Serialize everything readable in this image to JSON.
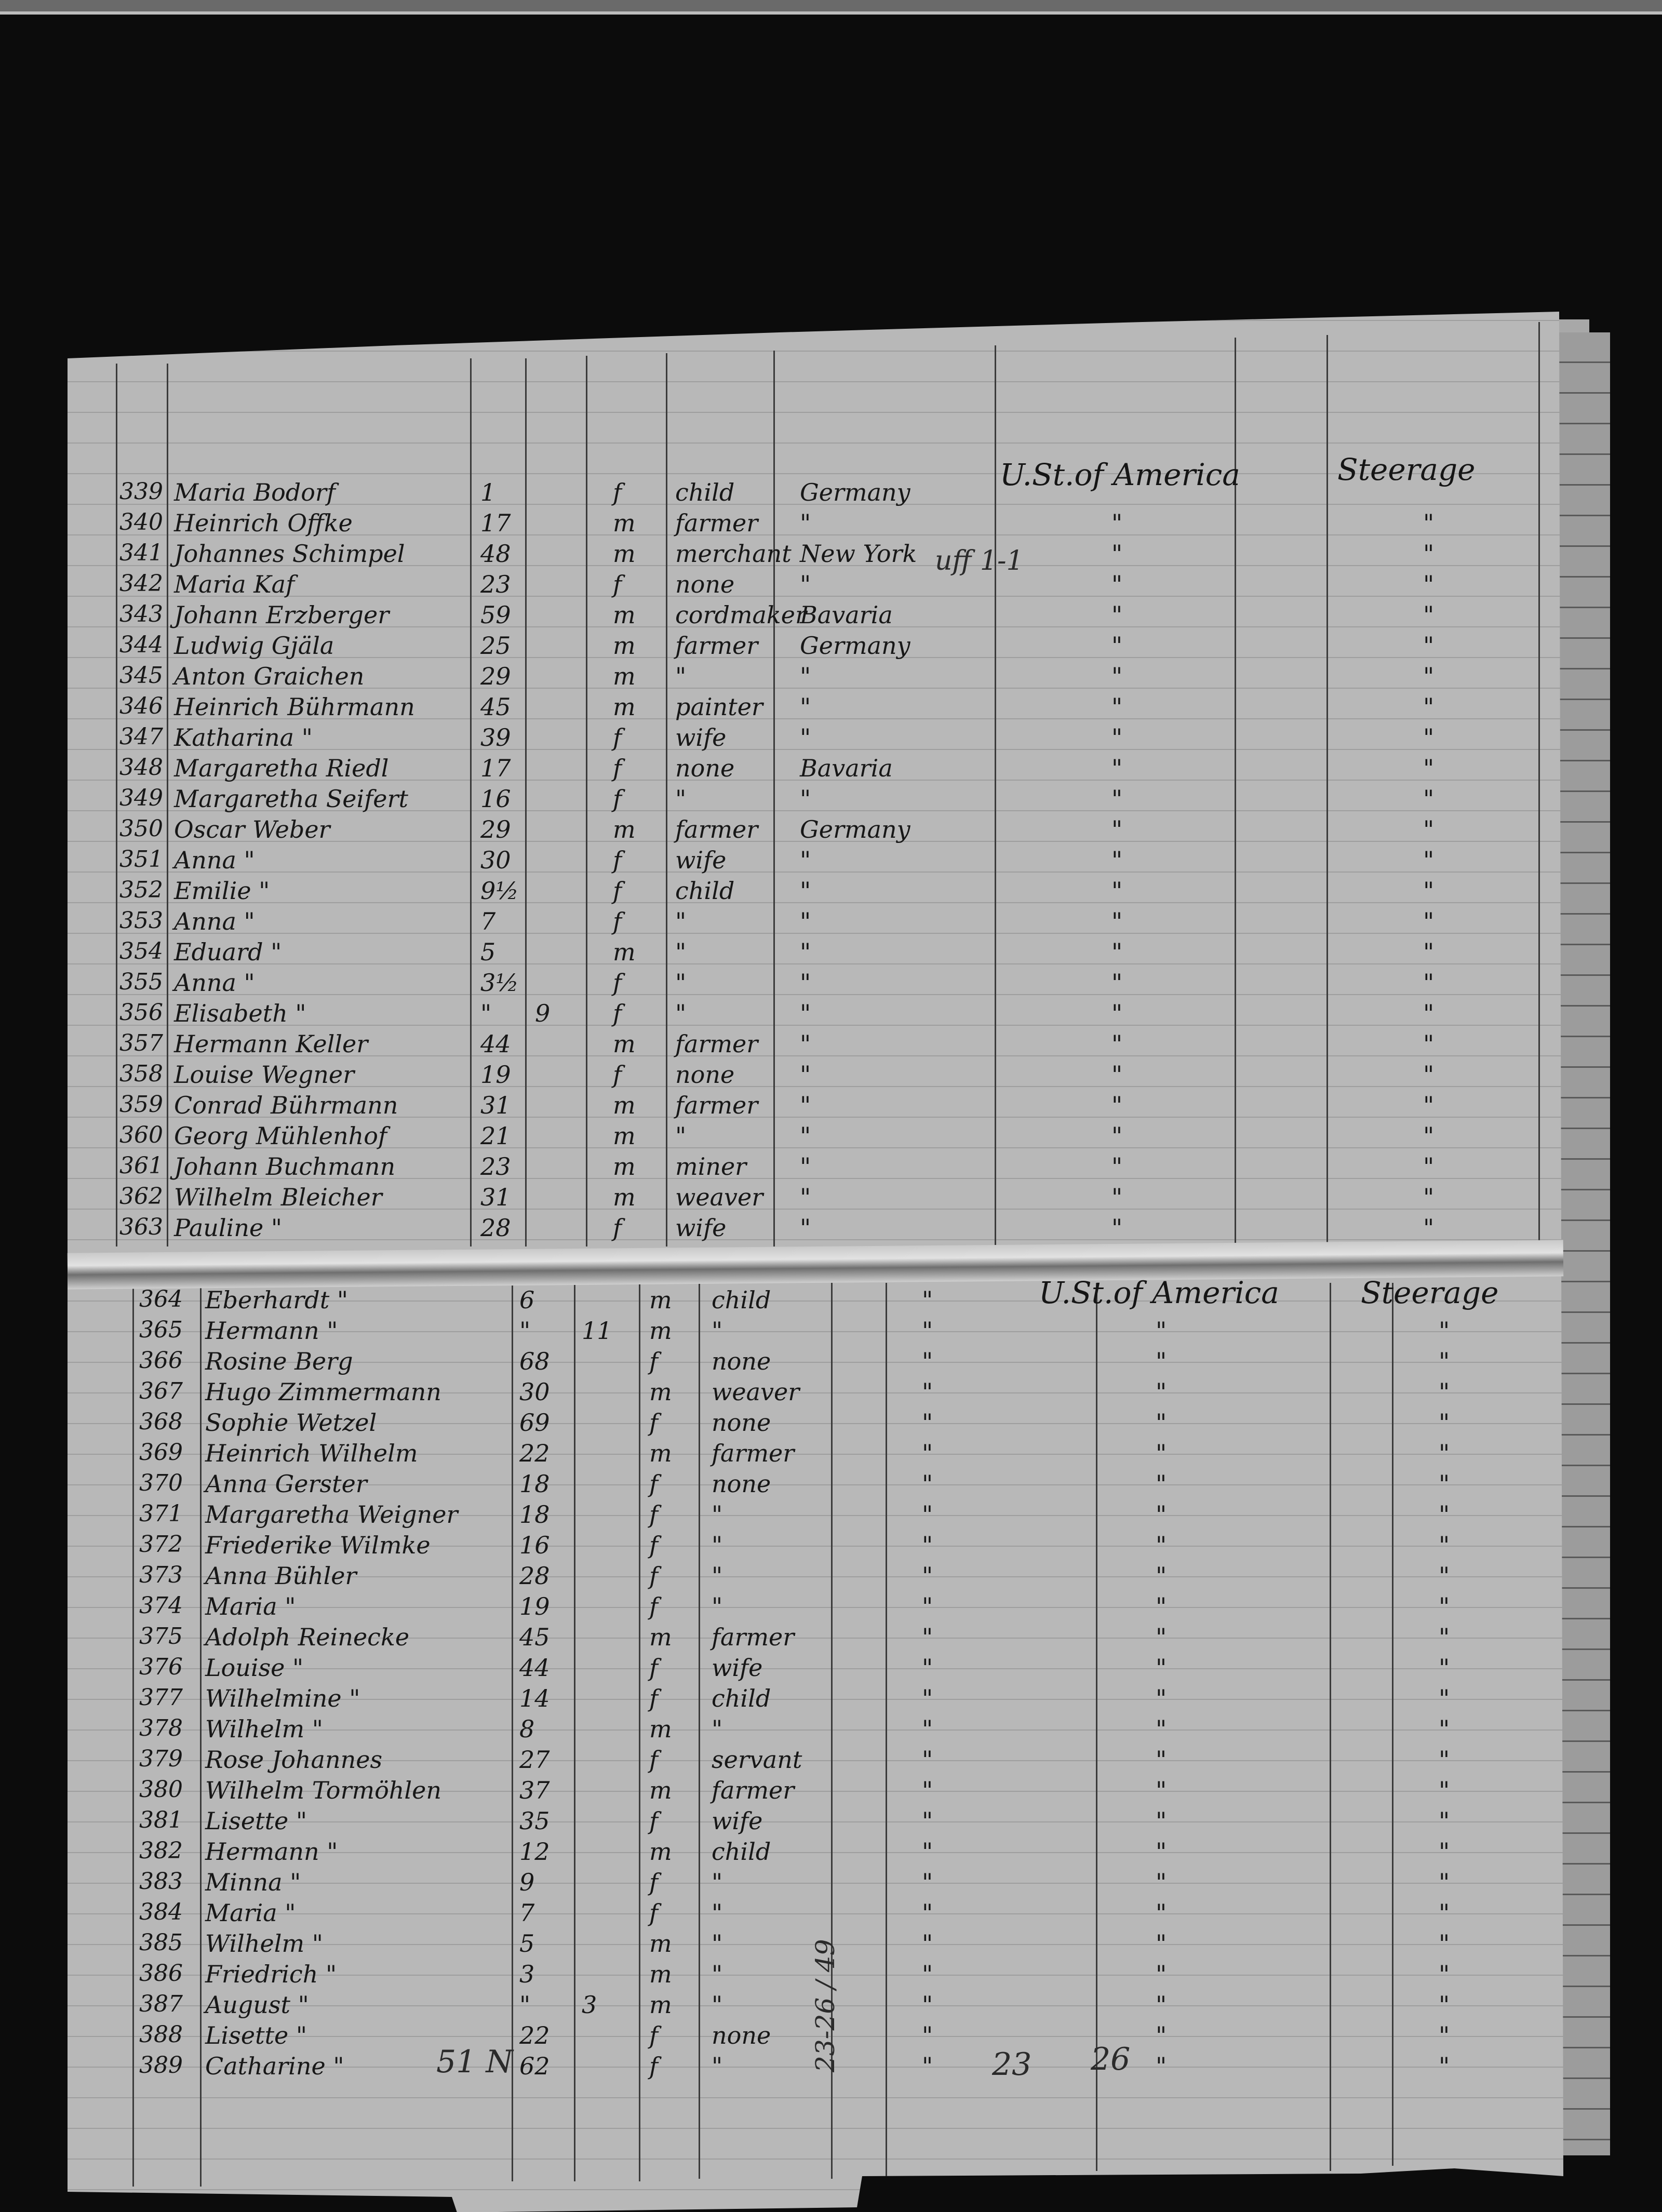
{
  "headers": {
    "top": {
      "destination": "U.St.of America",
      "class": "Steerage"
    },
    "bottom": {
      "destination": "U.St.of America",
      "class": "Steerage"
    }
  },
  "margin_notes": {
    "near_new_york": "uff 1-1",
    "bottom_left": "51 N",
    "bottom_sum": "23-26 / 49",
    "bottom_23": "23",
    "bottom_26": "26"
  },
  "ditto": "\"",
  "rows_top": [
    {
      "no": "339",
      "name": "Maria Bodorf",
      "age": "1",
      "months": "",
      "sex": "f",
      "occupation": "child",
      "country": "Germany",
      "destination": "",
      "class": ""
    },
    {
      "no": "340",
      "name": "Heinrich Offke",
      "age": "17",
      "months": "",
      "sex": "m",
      "occupation": "farmer",
      "country": "\"",
      "destination": "\"",
      "class": "\""
    },
    {
      "no": "341",
      "name": "Johannes Schimpel",
      "age": "48",
      "months": "",
      "sex": "m",
      "occupation": "merchant",
      "country": "New York",
      "destination": "\"",
      "class": "\""
    },
    {
      "no": "342",
      "name": "Maria Kaf",
      "age": "23",
      "months": "",
      "sex": "f",
      "occupation": "none",
      "country": "\"",
      "destination": "\"",
      "class": "\""
    },
    {
      "no": "343",
      "name": "Johann Erzberger",
      "age": "59",
      "months": "",
      "sex": "m",
      "occupation": "cordmaker",
      "country": "Bavaria",
      "destination": "\"",
      "class": "\""
    },
    {
      "no": "344",
      "name": "Ludwig Gjäla",
      "age": "25",
      "months": "",
      "sex": "m",
      "occupation": "farmer",
      "country": "Germany",
      "destination": "\"",
      "class": "\""
    },
    {
      "no": "345",
      "name": "Anton Graichen",
      "age": "29",
      "months": "",
      "sex": "m",
      "occupation": "\"",
      "country": "\"",
      "destination": "\"",
      "class": "\""
    },
    {
      "no": "346",
      "name": "Heinrich Bührmann",
      "age": "45",
      "months": "",
      "sex": "m",
      "occupation": "painter",
      "country": "\"",
      "destination": "\"",
      "class": "\""
    },
    {
      "no": "347",
      "name": "Katharina \"",
      "age": "39",
      "months": "",
      "sex": "f",
      "occupation": "wife",
      "country": "\"",
      "destination": "\"",
      "class": "\""
    },
    {
      "no": "348",
      "name": "Margaretha Riedl",
      "age": "17",
      "months": "",
      "sex": "f",
      "occupation": "none",
      "country": "Bavaria",
      "destination": "\"",
      "class": "\""
    },
    {
      "no": "349",
      "name": "Margaretha Seifert",
      "age": "16",
      "months": "",
      "sex": "f",
      "occupation": "\"",
      "country": "\"",
      "destination": "\"",
      "class": "\""
    },
    {
      "no": "350",
      "name": "Oscar Weber",
      "age": "29",
      "months": "",
      "sex": "m",
      "occupation": "farmer",
      "country": "Germany",
      "destination": "\"",
      "class": "\""
    },
    {
      "no": "351",
      "name": "Anna \"",
      "age": "30",
      "months": "",
      "sex": "f",
      "occupation": "wife",
      "country": "\"",
      "destination": "\"",
      "class": "\""
    },
    {
      "no": "352",
      "name": "Emilie \"",
      "age": "9½",
      "months": "",
      "sex": "f",
      "occupation": "child",
      "country": "\"",
      "destination": "\"",
      "class": "\""
    },
    {
      "no": "353",
      "name": "Anna \"",
      "age": "7",
      "months": "",
      "sex": "f",
      "occupation": "\"",
      "country": "\"",
      "destination": "\"",
      "class": "\""
    },
    {
      "no": "354",
      "name": "Eduard \"",
      "age": "5",
      "months": "",
      "sex": "m",
      "occupation": "\"",
      "country": "\"",
      "destination": "\"",
      "class": "\""
    },
    {
      "no": "355",
      "name": "Anna \"",
      "age": "3½",
      "months": "",
      "sex": "f",
      "occupation": "\"",
      "country": "\"",
      "destination": "\"",
      "class": "\""
    },
    {
      "no": "356",
      "name": "Elisabeth \"",
      "age": "\"",
      "months": "9",
      "sex": "f",
      "occupation": "\"",
      "country": "\"",
      "destination": "\"",
      "class": "\""
    },
    {
      "no": "357",
      "name": "Hermann Keller",
      "age": "44",
      "months": "",
      "sex": "m",
      "occupation": "farmer",
      "country": "\"",
      "destination": "\"",
      "class": "\""
    },
    {
      "no": "358",
      "name": "Louise Wegner",
      "age": "19",
      "months": "",
      "sex": "f",
      "occupation": "none",
      "country": "\"",
      "destination": "\"",
      "class": "\""
    },
    {
      "no": "359",
      "name": "Conrad Bührmann",
      "age": "31",
      "months": "",
      "sex": "m",
      "occupation": "farmer",
      "country": "\"",
      "destination": "\"",
      "class": "\""
    },
    {
      "no": "360",
      "name": "Georg Mühlenhof",
      "age": "21",
      "months": "",
      "sex": "m",
      "occupation": "\"",
      "country": "\"",
      "destination": "\"",
      "class": "\""
    },
    {
      "no": "361",
      "name": "Johann Buchmann",
      "age": "23",
      "months": "",
      "sex": "m",
      "occupation": "miner",
      "country": "\"",
      "destination": "\"",
      "class": "\""
    },
    {
      "no": "362",
      "name": "Wilhelm Bleicher",
      "age": "31",
      "months": "",
      "sex": "m",
      "occupation": "weaver",
      "country": "\"",
      "destination": "\"",
      "class": "\""
    },
    {
      "no": "363",
      "name": "Pauline \"",
      "age": "28",
      "months": "",
      "sex": "f",
      "occupation": "wife",
      "country": "\"",
      "destination": "\"",
      "class": "\""
    }
  ],
  "rows_bottom": [
    {
      "no": "364",
      "name": "Eberhardt \"",
      "age": "6",
      "months": "",
      "sex": "m",
      "occupation": "child",
      "country": "\"",
      "destination": "",
      "class": ""
    },
    {
      "no": "365",
      "name": "Hermann \"",
      "age": "\"",
      "months": "11",
      "sex": "m",
      "occupation": "\"",
      "country": "\"",
      "destination": "\"",
      "class": "\""
    },
    {
      "no": "366",
      "name": "Rosine Berg",
      "age": "68",
      "months": "",
      "sex": "f",
      "occupation": "none",
      "country": "\"",
      "destination": "\"",
      "class": "\""
    },
    {
      "no": "367",
      "name": "Hugo Zimmermann",
      "age": "30",
      "months": "",
      "sex": "m",
      "occupation": "weaver",
      "country": "\"",
      "destination": "\"",
      "class": "\""
    },
    {
      "no": "368",
      "name": "Sophie Wetzel",
      "age": "69",
      "months": "",
      "sex": "f",
      "occupation": "none",
      "country": "\"",
      "destination": "\"",
      "class": "\""
    },
    {
      "no": "369",
      "name": "Heinrich Wilhelm",
      "age": "22",
      "months": "",
      "sex": "m",
      "occupation": "farmer",
      "country": "\"",
      "destination": "\"",
      "class": "\""
    },
    {
      "no": "370",
      "name": "Anna Gerster",
      "age": "18",
      "months": "",
      "sex": "f",
      "occupation": "none",
      "country": "\"",
      "destination": "\"",
      "class": "\""
    },
    {
      "no": "371",
      "name": "Margaretha Weigner",
      "age": "18",
      "months": "",
      "sex": "f",
      "occupation": "\"",
      "country": "\"",
      "destination": "\"",
      "class": "\""
    },
    {
      "no": "372",
      "name": "Friederike Wilmke",
      "age": "16",
      "months": "",
      "sex": "f",
      "occupation": "\"",
      "country": "\"",
      "destination": "\"",
      "class": "\""
    },
    {
      "no": "373",
      "name": "Anna Bühler",
      "age": "28",
      "months": "",
      "sex": "f",
      "occupation": "\"",
      "country": "\"",
      "destination": "\"",
      "class": "\""
    },
    {
      "no": "374",
      "name": "Maria \"",
      "age": "19",
      "months": "",
      "sex": "f",
      "occupation": "\"",
      "country": "\"",
      "destination": "\"",
      "class": "\""
    },
    {
      "no": "375",
      "name": "Adolph Reinecke",
      "age": "45",
      "months": "",
      "sex": "m",
      "occupation": "farmer",
      "country": "\"",
      "destination": "\"",
      "class": "\""
    },
    {
      "no": "376",
      "name": "Louise \"",
      "age": "44",
      "months": "",
      "sex": "f",
      "occupation": "wife",
      "country": "\"",
      "destination": "\"",
      "class": "\""
    },
    {
      "no": "377",
      "name": "Wilhelmine \"",
      "age": "14",
      "months": "",
      "sex": "f",
      "occupation": "child",
      "country": "\"",
      "destination": "\"",
      "class": "\""
    },
    {
      "no": "378",
      "name": "Wilhelm \"",
      "age": "8",
      "months": "",
      "sex": "m",
      "occupation": "\"",
      "country": "\"",
      "destination": "\"",
      "class": "\""
    },
    {
      "no": "379",
      "name": "Rose Johannes",
      "age": "27",
      "months": "",
      "sex": "f",
      "occupation": "servant",
      "country": "\"",
      "destination": "\"",
      "class": "\""
    },
    {
      "no": "380",
      "name": "Wilhelm Tormöhlen",
      "age": "37",
      "months": "",
      "sex": "m",
      "occupation": "farmer",
      "country": "\"",
      "destination": "\"",
      "class": "\""
    },
    {
      "no": "381",
      "name": "Lisette \"",
      "age": "35",
      "months": "",
      "sex": "f",
      "occupation": "wife",
      "country": "\"",
      "destination": "\"",
      "class": "\""
    },
    {
      "no": "382",
      "name": "Hermann \"",
      "age": "12",
      "months": "",
      "sex": "m",
      "occupation": "child",
      "country": "\"",
      "destination": "\"",
      "class": "\""
    },
    {
      "no": "383",
      "name": "Minna \"",
      "age": "9",
      "months": "",
      "sex": "f",
      "occupation": "\"",
      "country": "\"",
      "destination": "\"",
      "class": "\""
    },
    {
      "no": "384",
      "name": "Maria \"",
      "age": "7",
      "months": "",
      "sex": "f",
      "occupation": "\"",
      "country": "\"",
      "destination": "\"",
      "class": "\""
    },
    {
      "no": "385",
      "name": "Wilhelm \"",
      "age": "5",
      "months": "",
      "sex": "m",
      "occupation": "\"",
      "country": "\"",
      "destination": "\"",
      "class": "\""
    },
    {
      "no": "386",
      "name": "Friedrich \"",
      "age": "3",
      "months": "",
      "sex": "m",
      "occupation": "\"",
      "country": "\"",
      "destination": "\"",
      "class": "\""
    },
    {
      "no": "387",
      "name": "August \"",
      "age": "\"",
      "months": "3",
      "sex": "m",
      "occupation": "\"",
      "country": "\"",
      "destination": "\"",
      "class": "\""
    },
    {
      "no": "388",
      "name": "Lisette \"",
      "age": "22",
      "months": "",
      "sex": "f",
      "occupation": "none",
      "country": "\"",
      "destination": "\"",
      "class": "\""
    },
    {
      "no": "389",
      "name": "Catharine \"",
      "age": "62",
      "months": "",
      "sex": "f",
      "occupation": "\"",
      "country": "\"",
      "destination": "\"",
      "class": "\""
    }
  ]
}
